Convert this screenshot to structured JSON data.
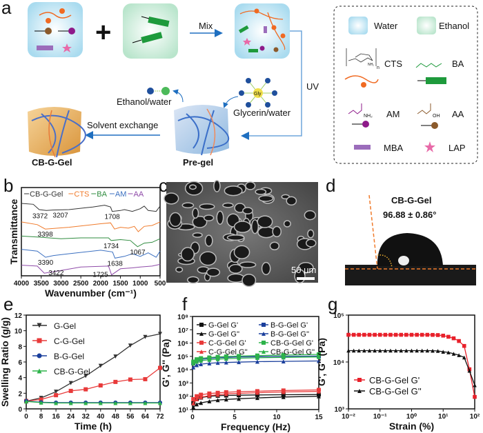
{
  "panel_labels": {
    "a": "a",
    "b": "b",
    "c": "c",
    "d": "d",
    "e": "e",
    "f": "f",
    "g": "g"
  },
  "schematic": {
    "mix": "Mix",
    "uv": "UV",
    "plus": "+",
    "glycerin": "Glycerin/water",
    "gly": "Gly",
    "ethanol_water": "Ethanol/water",
    "solvent_exchange": "Solvent exchange",
    "pregel": "Pre-gel",
    "cbggel": "CB-G-Gel",
    "legend": {
      "water": "Water",
      "ethanol": "Ethanol",
      "cts": "CTS",
      "ba": "BA",
      "am": "AM",
      "aa": "AA",
      "mba": "MBA",
      "lap": "LAP",
      "nh2": "NH₂",
      "oh": "OH",
      "n": "n"
    },
    "colors": {
      "water": "#bfe3f2",
      "ethanol": "#cdebd9",
      "cts": "#f06a22",
      "ba": "#1e9a3c",
      "am": "#8e1a8a",
      "aa": "#8b5a2b",
      "mba": "#9b6dbb",
      "lap": "#e86aa8",
      "arrow": "#1f6fc0"
    }
  },
  "sem": {
    "scale_bar": "50 μm"
  },
  "contact_angle": {
    "title": "CB-G-Gel",
    "value": "96.88 ± 0.86°"
  },
  "chart_data": [
    {
      "id": "b",
      "type": "line",
      "xlabel": "Wavenumber (cm⁻¹)",
      "ylabel": "Transmittance",
      "xlim": [
        4000,
        500
      ],
      "ylim": [
        0,
        10
      ],
      "xticks": [
        4000,
        3500,
        3000,
        2500,
        2000,
        1500,
        1000,
        500
      ],
      "xtick_labels": [
        "4000",
        "3500",
        "3000",
        "2500",
        "2000",
        "1500",
        "1000",
        "500"
      ],
      "legend_position": "top",
      "series": [
        {
          "name": "CB-G-Gel",
          "color": "#333333",
          "x": [
            4000,
            3700,
            3550,
            3372,
            3207,
            2800,
            2200,
            1900,
            1750,
            1708,
            1500,
            1400,
            1200,
            1000,
            900,
            800,
            600,
            500
          ],
          "y": [
            8.2,
            8.1,
            7.5,
            7.4,
            7.45,
            7.5,
            7.8,
            8.0,
            7.8,
            7.3,
            7.4,
            7.5,
            7.3,
            7.6,
            7.9,
            7.4,
            7.3,
            7.9
          ]
        },
        {
          "name": "CTS",
          "color": "#f07a2a",
          "x": [
            4000,
            3600,
            3398,
            2800,
            2000,
            1750,
            1650,
            1500,
            1300,
            1150,
            1050,
            900,
            700,
            500
          ],
          "y": [
            6.1,
            5.8,
            5.3,
            5.5,
            5.9,
            6.0,
            5.3,
            5.5,
            5.4,
            5.6,
            5.0,
            5.6,
            5.7,
            6.1
          ]
        },
        {
          "name": "BA",
          "color": "#2e8b3e",
          "x": [
            4000,
            3600,
            3000,
            2500,
            1800,
            1734,
            1500,
            1250,
            1150,
            1067,
            900,
            700,
            500
          ],
          "y": [
            4.5,
            4.4,
            4.2,
            4.3,
            4.3,
            4.0,
            4.1,
            4.0,
            3.6,
            3.3,
            3.7,
            3.8,
            4.2
          ]
        },
        {
          "name": "AM",
          "color": "#3a6fc0",
          "x": [
            4000,
            3600,
            3390,
            3190,
            2800,
            2000,
            1700,
            1638,
            1400,
            1200,
            1000,
            800,
            600,
            500
          ],
          "y": [
            3.0,
            2.8,
            2.1,
            2.3,
            2.5,
            2.9,
            2.7,
            2.0,
            2.2,
            2.5,
            2.2,
            2.6,
            2.1,
            2.8
          ]
        },
        {
          "name": "AA",
          "color": "#8e4aa8",
          "x": [
            4000,
            3600,
            3422,
            3000,
            2500,
            1800,
            1725,
            1500,
            1200,
            1000,
            700,
            500
          ],
          "y": [
            1.2,
            1.1,
            0.3,
            0.6,
            1.0,
            1.1,
            0.1,
            0.8,
            0.9,
            1.0,
            1.1,
            1.3
          ]
        }
      ],
      "annotations": [
        {
          "text": "3372",
          "x": 3372,
          "y": 7.4
        },
        {
          "text": "3207",
          "x": 3207,
          "y": 7.45
        },
        {
          "text": "1708",
          "x": 1708,
          "y": 7.3
        },
        {
          "text": "3398",
          "x": 3398,
          "y": 5.3
        },
        {
          "text": "1734",
          "x": 1734,
          "y": 4.0
        },
        {
          "text": "1067",
          "x": 1067,
          "y": 3.3
        },
        {
          "text": "3390",
          "x": 3390,
          "y": 2.1
        },
        {
          "text": "1638",
          "x": 1638,
          "y": 2.0
        },
        {
          "text": "3422",
          "x": 3422,
          "y": 0.3
        },
        {
          "text": "1725",
          "x": 1725,
          "y": 0.1
        }
      ]
    },
    {
      "id": "e",
      "type": "line",
      "xlabel": "Time (h)",
      "ylabel": "Swelling Ratio (g/g)",
      "xlim": [
        0,
        72
      ],
      "ylim": [
        0,
        12
      ],
      "xticks": [
        0,
        8,
        16,
        24,
        32,
        40,
        48,
        56,
        64,
        72
      ],
      "yticks": [
        0,
        2,
        4,
        6,
        8,
        10,
        12
      ],
      "xtick_labels": [
        "0",
        "8",
        "16",
        "24",
        "32",
        "40",
        "48",
        "56",
        "64",
        "72"
      ],
      "ytick_labels": [
        "0",
        "2",
        "4",
        "6",
        "8",
        "10",
        "12"
      ],
      "legend_position": "top-left",
      "x": [
        0,
        8,
        16,
        24,
        32,
        40,
        48,
        56,
        64,
        72
      ],
      "series": [
        {
          "name": "G-Gel",
          "color": "#333333",
          "marker": "triangle-down",
          "values": [
            1.0,
            1.4,
            2.2,
            3.3,
            4.2,
            5.5,
            6.7,
            8.1,
            9.2,
            9.6
          ]
        },
        {
          "name": "C-G-Gel",
          "color": "#e83a3a",
          "marker": "square",
          "values": [
            1.0,
            1.2,
            1.75,
            2.3,
            2.5,
            3.0,
            3.45,
            3.75,
            3.8,
            5.25
          ]
        },
        {
          "name": "B-G-Gel",
          "color": "#1a3f9c",
          "marker": "circle",
          "values": [
            1.0,
            0.85,
            0.8,
            0.8,
            0.8,
            0.8,
            0.8,
            0.8,
            0.8,
            0.8
          ]
        },
        {
          "name": "CB-G-Gel",
          "color": "#2db34a",
          "marker": "triangle-up",
          "values": [
            0.95,
            0.8,
            0.75,
            0.75,
            0.75,
            0.75,
            0.75,
            0.75,
            0.75,
            0.75
          ]
        }
      ]
    },
    {
      "id": "f",
      "type": "line",
      "xlabel": "Frequency (Hz)",
      "ylabel": "G', G'' (Pa)",
      "xlim": [
        0,
        15
      ],
      "ylim": [
        10,
        100000000
      ],
      "yscale": "log",
      "xticks": [
        0,
        5,
        10,
        15
      ],
      "xtick_labels": [
        "0",
        "5",
        "10",
        "15"
      ],
      "yticks": [
        10,
        100,
        1000,
        10000,
        100000,
        1000000,
        10000000,
        100000000
      ],
      "ytick_labels": [
        "10¹",
        "10²",
        "10³",
        "10⁴",
        "10⁵",
        "10⁶",
        "10⁷",
        "10⁸"
      ],
      "legend_position": "top",
      "x": [
        0.1,
        0.5,
        1,
        2,
        3,
        4,
        5.5,
        7.7,
        10.8,
        15
      ],
      "series": [
        {
          "name": "G-Gel G'",
          "color": "#111111",
          "marker": "square",
          "values": [
            30,
            60,
            80,
            100,
            110,
            115,
            120,
            125,
            130,
            135
          ]
        },
        {
          "name": "G-Gel G''",
          "color": "#111111",
          "marker": "triangle-up",
          "values": [
            15,
            25,
            32,
            42,
            52,
            58,
            65,
            75,
            88,
            100
          ]
        },
        {
          "name": "C-G-Gel G'",
          "color": "#e83a3a",
          "marker": "square",
          "values": [
            60,
            100,
            130,
            160,
            180,
            200,
            220,
            240,
            270,
            300
          ]
        },
        {
          "name": "C-G-Gel G''",
          "color": "#e83a3a",
          "marker": "triangle-up",
          "values": [
            30,
            60,
            85,
            110,
            130,
            150,
            165,
            185,
            210,
            230
          ]
        },
        {
          "name": "B-G-Gel G'",
          "color": "#1a3f9c",
          "marker": "square",
          "values": [
            30000,
            50000,
            60000,
            70000,
            78000,
            84000,
            90000,
            95000,
            100000,
            105000
          ]
        },
        {
          "name": "B-G-Gel G''",
          "color": "#1a3f9c",
          "marker": "triangle-up",
          "values": [
            15000,
            22000,
            26000,
            30000,
            33000,
            35000,
            37000,
            40000,
            42000,
            45000
          ]
        },
        {
          "name": "CB-G-Gel G'",
          "color": "#2db34a",
          "marker": "square",
          "values": [
            40000,
            60000,
            72000,
            82000,
            90000,
            97000,
            105000,
            115000,
            125000,
            140000
          ]
        },
        {
          "name": "CB-G-Gel G''",
          "color": "#2db34a",
          "marker": "triangle-up",
          "values": [
            30000,
            40000,
            48000,
            55000,
            62000,
            67000,
            72000,
            78000,
            84000,
            90000
          ]
        }
      ]
    },
    {
      "id": "g",
      "type": "line",
      "xlabel": "Strain (%)",
      "ylabel": "G', G'' (Pa)",
      "xlim": [
        0.01,
        100
      ],
      "ylim": [
        1000,
        100000
      ],
      "xscale": "log",
      "yscale": "log",
      "xticks": [
        0.01,
        0.1,
        1,
        10,
        100
      ],
      "xtick_labels": [
        "10⁻²",
        "10⁻¹",
        "10⁰",
        "10¹",
        "10²"
      ],
      "yticks": [
        1000,
        10000,
        100000
      ],
      "ytick_labels": [
        "10³",
        "10⁴",
        "10⁵"
      ],
      "legend_position": "bottom-left",
      "x": [
        0.01,
        0.0147,
        0.0215,
        0.0316,
        0.0464,
        0.068,
        0.1,
        0.147,
        0.215,
        0.316,
        0.464,
        0.68,
        1,
        1.47,
        2.15,
        3.16,
        4.64,
        6.8,
        10,
        14.7,
        21.5,
        31.6,
        46.4,
        68,
        100
      ],
      "series": [
        {
          "name": "CB-G-Gel G'",
          "color": "#e8202a",
          "marker": "square",
          "values": [
            38000,
            38000,
            38000,
            38000,
            38000,
            38000,
            38000,
            38000,
            38000,
            38000,
            38000,
            38000,
            38000,
            38000,
            38000,
            38000,
            37800,
            37500,
            36500,
            34500,
            32000,
            28000,
            22000,
            7000,
            1800
          ]
        },
        {
          "name": "CB-G-Gel G''",
          "color": "#111111",
          "marker": "triangle-up",
          "values": [
            17500,
            17500,
            17500,
            17500,
            17500,
            17500,
            17500,
            17500,
            17500,
            17500,
            17500,
            17500,
            17500,
            17500,
            17500,
            17500,
            17400,
            17200,
            16500,
            16000,
            15000,
            14000,
            12500,
            6500,
            3200
          ]
        }
      ]
    }
  ]
}
